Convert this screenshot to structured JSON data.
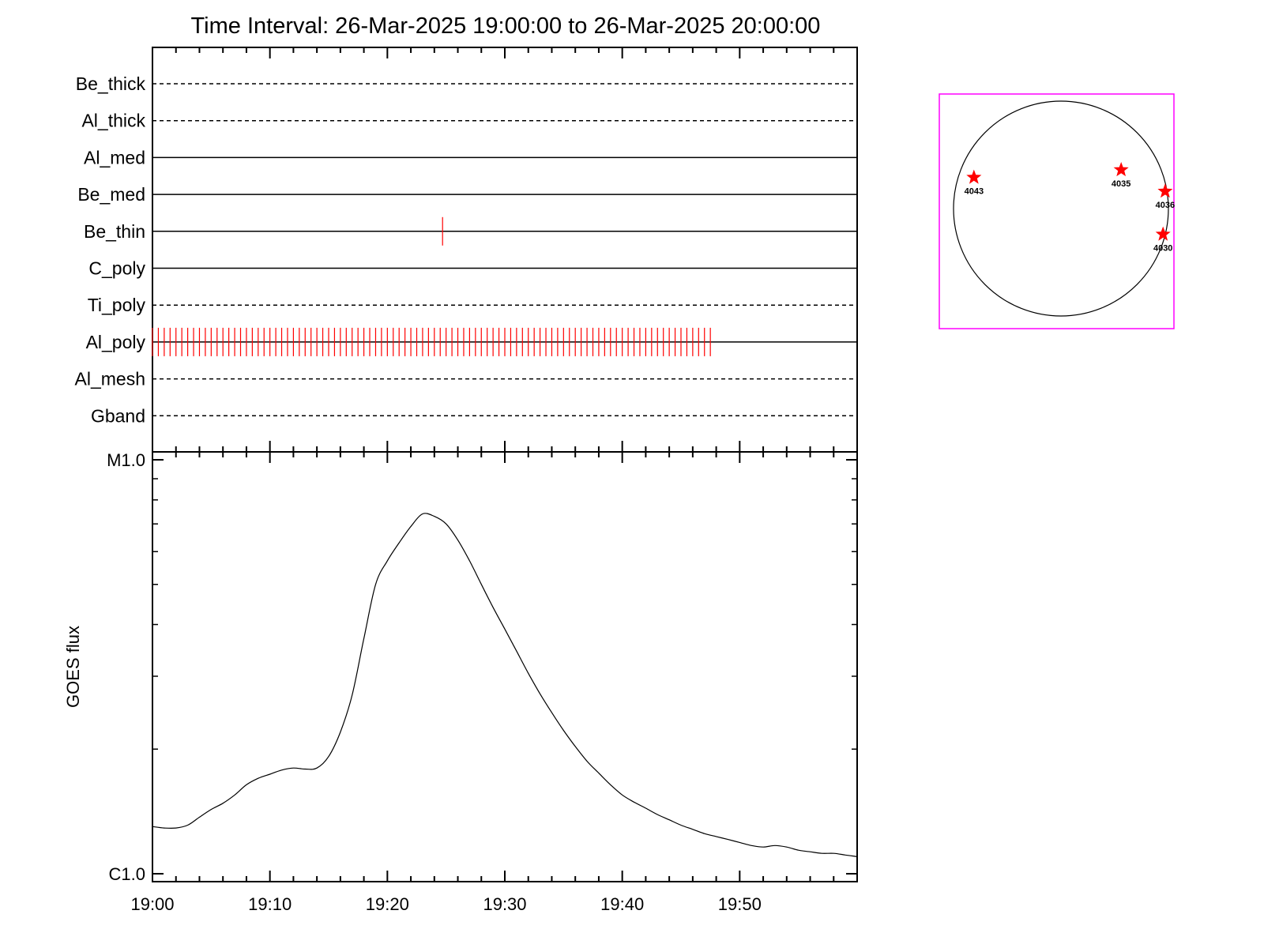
{
  "title": "Time Interval: 26-Mar-2025 19:00:00 to 26-Mar-2025 20:00:00",
  "colors": {
    "axis": "#000000",
    "tick_marks": "#ff0000",
    "stars": "#ff0000",
    "inset_border": "#ff00ff",
    "curve": "#000000"
  },
  "chart_data": [
    {
      "type": "timeline",
      "x_range_minutes": [
        0,
        60
      ],
      "channels": [
        {
          "name": "Be_thick",
          "style": "dashed",
          "marks": []
        },
        {
          "name": "Al_thick",
          "style": "dashed",
          "marks": []
        },
        {
          "name": "Al_med",
          "style": "solid",
          "marks": []
        },
        {
          "name": "Be_med",
          "style": "solid",
          "marks": []
        },
        {
          "name": "Be_thin",
          "style": "solid",
          "marks": [
            24.7
          ]
        },
        {
          "name": "C_poly",
          "style": "solid",
          "marks": []
        },
        {
          "name": "Ti_poly",
          "style": "dashed",
          "marks": []
        },
        {
          "name": "Al_poly",
          "style": "solid",
          "marks_start": 0.0,
          "marks_end": 47.5,
          "marks_interval": 0.5
        },
        {
          "name": "Al_mesh",
          "style": "dashed",
          "marks": []
        },
        {
          "name": "Gband",
          "style": "dashed",
          "marks": []
        }
      ]
    },
    {
      "type": "line",
      "ylabel": "GOES flux",
      "y_scale": "log",
      "ylim": [
        1e-06,
        1e-05
      ],
      "yticks": [
        {
          "label": "M1.0",
          "value": 1e-05
        },
        {
          "label": "C1.0",
          "value": 1e-06
        }
      ],
      "xticks": [
        {
          "label": "19:00",
          "minute": 0
        },
        {
          "label": "19:10",
          "minute": 10
        },
        {
          "label": "19:20",
          "minute": 20
        },
        {
          "label": "19:30",
          "minute": 30
        },
        {
          "label": "19:40",
          "minute": 40
        },
        {
          "label": "19:50",
          "minute": 50
        }
      ],
      "x_minutes": [
        0,
        1,
        2,
        3,
        4,
        5,
        6,
        7,
        8,
        9,
        10,
        11,
        12,
        13,
        14,
        15,
        16,
        17,
        18,
        19,
        20,
        21,
        22,
        23,
        24,
        25,
        26,
        27,
        28,
        29,
        30,
        31,
        32,
        33,
        34,
        35,
        36,
        37,
        38,
        39,
        40,
        41,
        42,
        43,
        44,
        45,
        46,
        47,
        48,
        49,
        50,
        51,
        52,
        53,
        54,
        55,
        56,
        57,
        58,
        59,
        60
      ],
      "y_values": [
        1.3e-06,
        1.29e-06,
        1.29e-06,
        1.31e-06,
        1.37e-06,
        1.43e-06,
        1.48e-06,
        1.55e-06,
        1.64e-06,
        1.7e-06,
        1.74e-06,
        1.78e-06,
        1.8e-06,
        1.79e-06,
        1.8e-06,
        1.92e-06,
        2.2e-06,
        2.7e-06,
        3.7e-06,
        5e-06,
        5.7e-06,
        6.3e-06,
        6.9e-06,
        7.4e-06,
        7.3e-06,
        7e-06,
        6.4e-06,
        5.7e-06,
        5e-06,
        4.4e-06,
        3.9e-06,
        3.45e-06,
        3.05e-06,
        2.72e-06,
        2.45e-06,
        2.22e-06,
        2.03e-06,
        1.87e-06,
        1.75e-06,
        1.64e-06,
        1.55e-06,
        1.49e-06,
        1.44e-06,
        1.39e-06,
        1.35e-06,
        1.31e-06,
        1.28e-06,
        1.25e-06,
        1.23e-06,
        1.21e-06,
        1.19e-06,
        1.17e-06,
        1.16e-06,
        1.17e-06,
        1.16e-06,
        1.14e-06,
        1.13e-06,
        1.12e-06,
        1.12e-06,
        1.11e-06,
        1.1e-06
      ]
    },
    {
      "type": "scatter",
      "disk_x_range": [
        -1,
        1
      ],
      "disk_y_range": [
        -1,
        1
      ],
      "active_regions": [
        {
          "label": "4043",
          "x": -0.81,
          "y": 0.29
        },
        {
          "label": "4035",
          "x": 0.56,
          "y": 0.36
        },
        {
          "label": "4036",
          "x": 0.97,
          "y": 0.16
        },
        {
          "label": "4030",
          "x": 0.95,
          "y": -0.24
        }
      ]
    }
  ]
}
